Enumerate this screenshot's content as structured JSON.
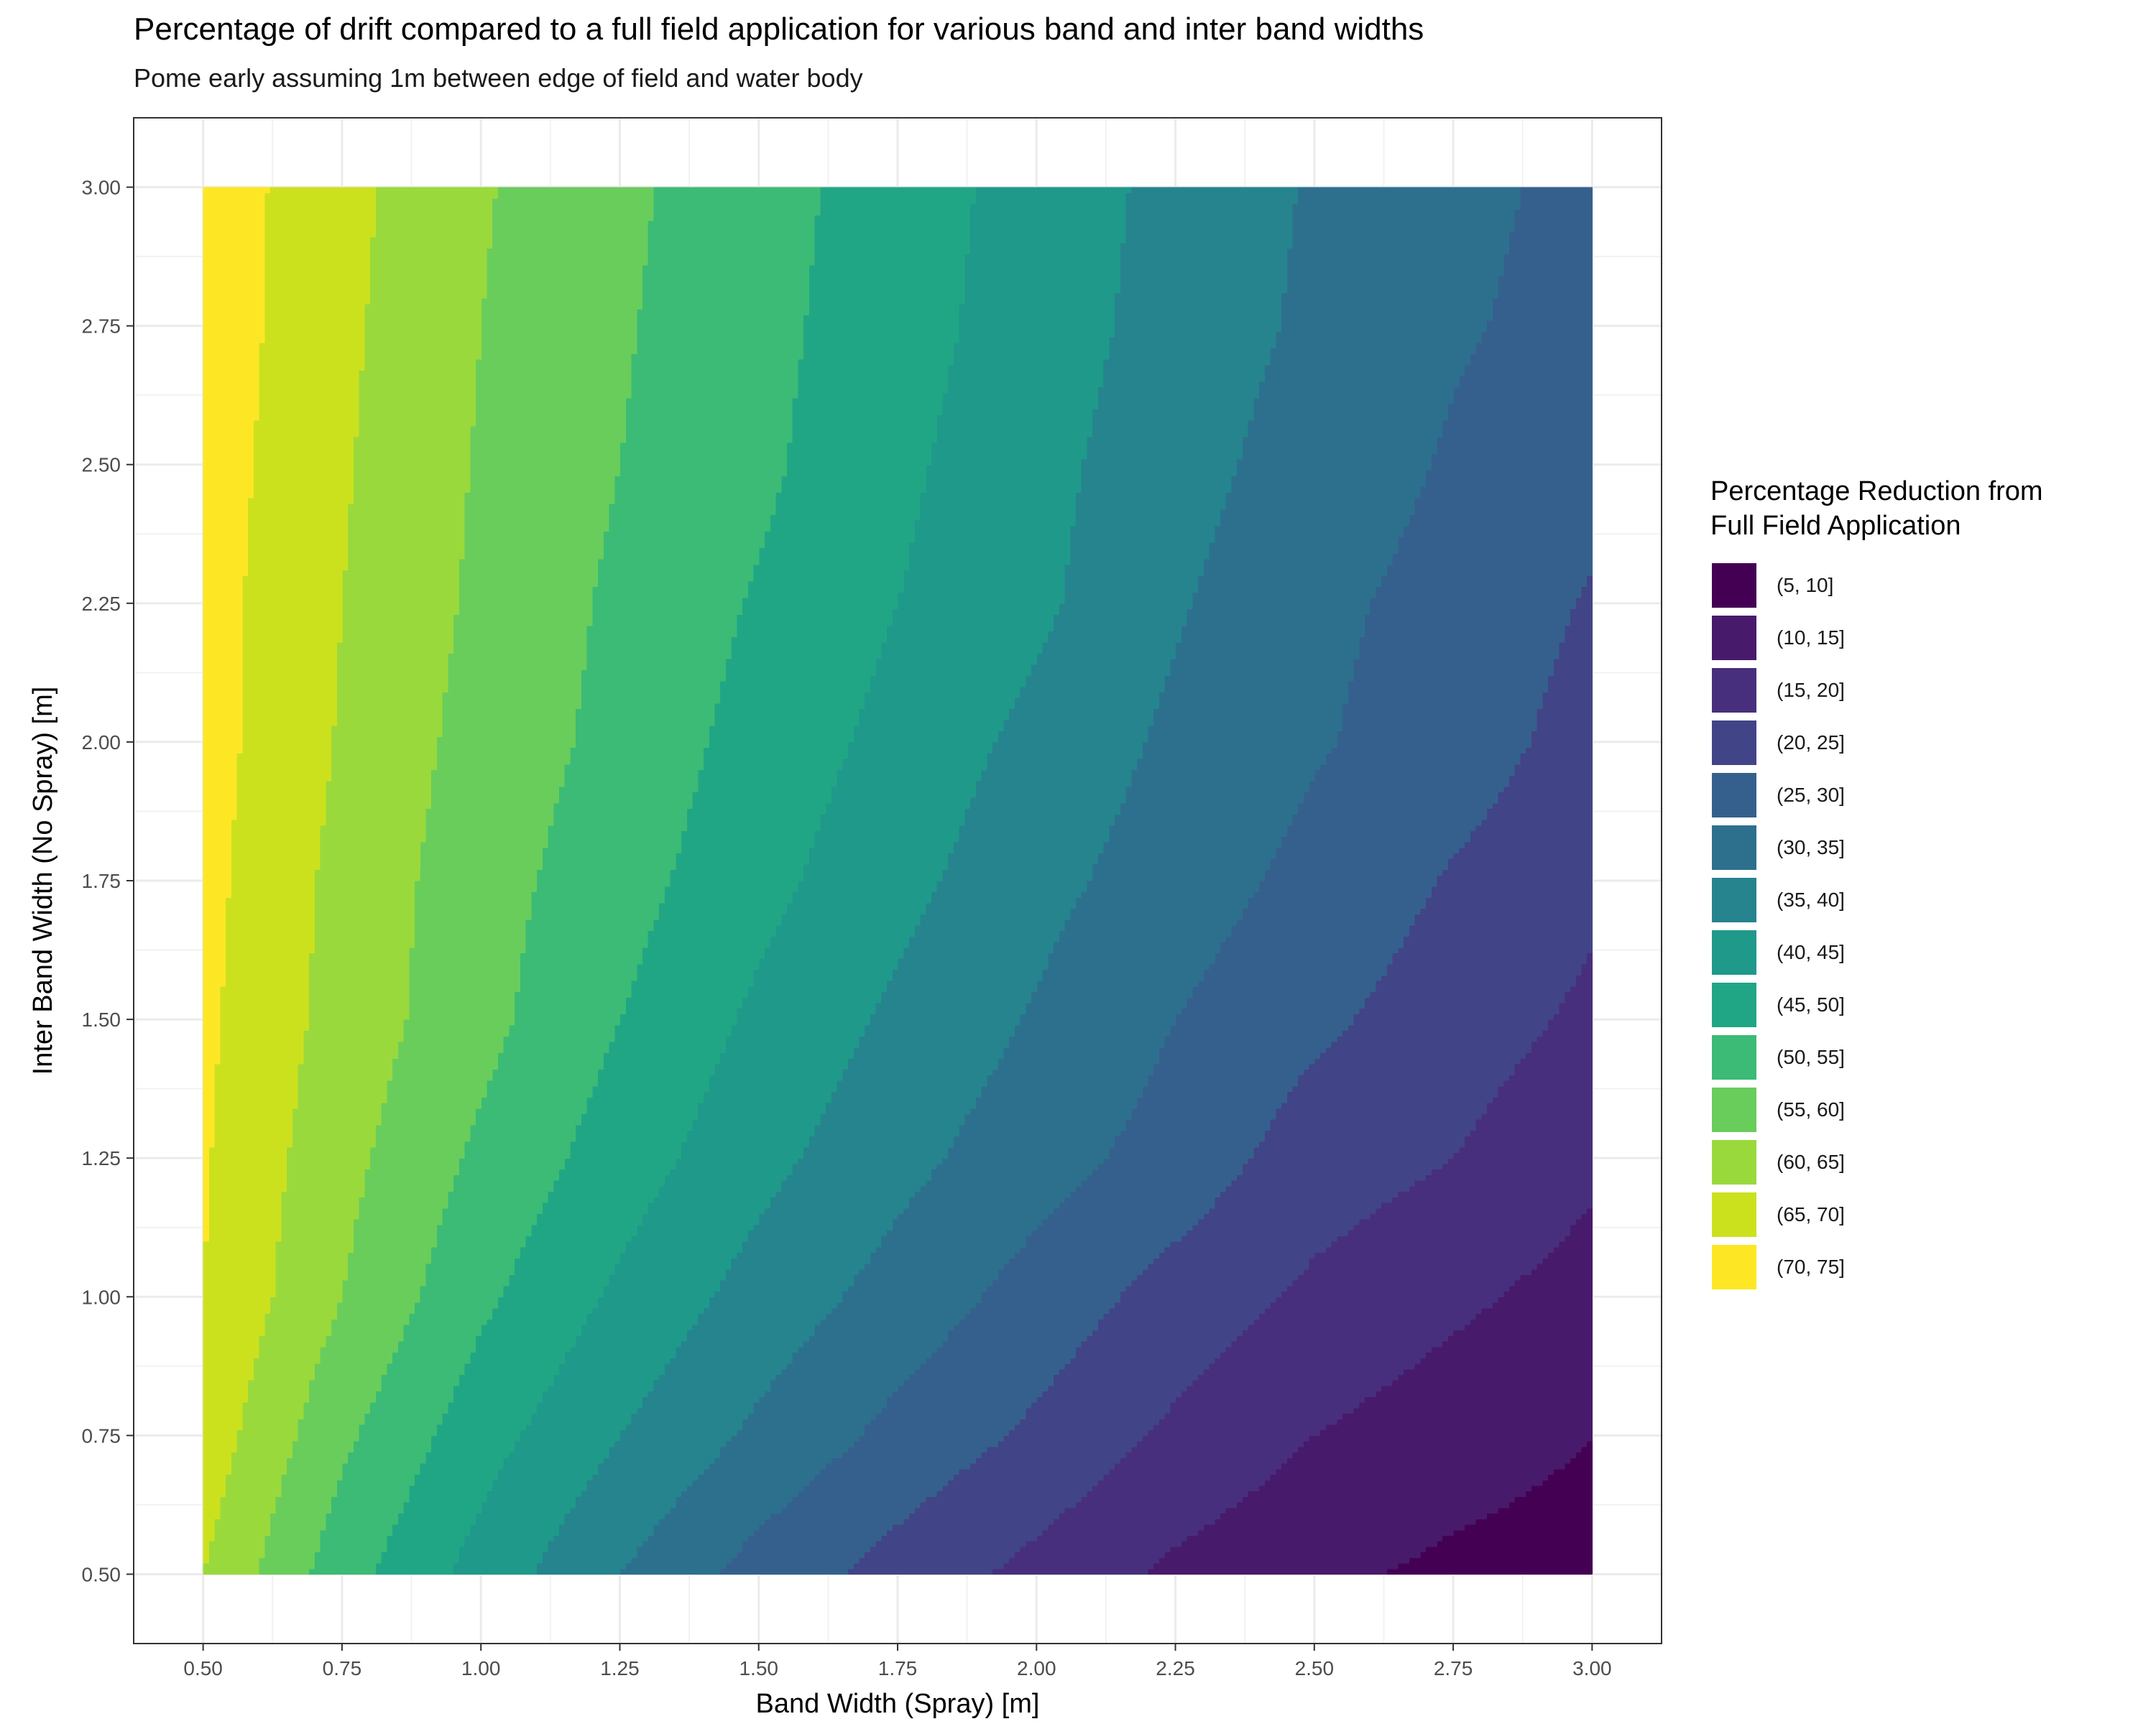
{
  "chart_data": {
    "type": "filled-contour",
    "title": "Percentage of drift compared to a full field application for various band and inter band widths",
    "subtitle": "Pome early assuming 1m between edge of field and water body",
    "xlabel": "Band Width (Spray) [m]",
    "ylabel": "Inter Band Width (No Spray) [m]",
    "xlim": [
      0.375,
      3.125
    ],
    "ylim": [
      0.375,
      3.125
    ],
    "x_ticks": [
      "0.50",
      "0.75",
      "1.00",
      "1.25",
      "1.50",
      "1.75",
      "2.00",
      "2.25",
      "2.50",
      "2.75",
      "3.00"
    ],
    "y_ticks": [
      "0.50",
      "0.75",
      "1.00",
      "1.25",
      "1.50",
      "1.75",
      "2.00",
      "2.25",
      "2.50",
      "2.75",
      "3.00"
    ],
    "x_grid": [
      0.5,
      0.75,
      1.0,
      1.25,
      1.5,
      1.75,
      2.0,
      2.25,
      2.5,
      2.75,
      3.0
    ],
    "y_grid": [
      0.5,
      0.75,
      1.0,
      1.25,
      1.5,
      1.75,
      2.0,
      2.25,
      2.5,
      2.75,
      3.0
    ],
    "z_values": [
      [
        65,
        52,
        43,
        35,
        28,
        23,
        18.5,
        14,
        11,
        9,
        8
      ],
      [
        68,
        56,
        47,
        40,
        34,
        28.5,
        24,
        19,
        15,
        12.3,
        10
      ],
      [
        70,
        60,
        51,
        44,
        38,
        33,
        28,
        23,
        19,
        16,
        13
      ],
      [
        70.5,
        61.5,
        54,
        47.5,
        41.5,
        36.5,
        32,
        28,
        22.5,
        20,
        16
      ],
      [
        71,
        63,
        56.5,
        50,
        44,
        39,
        34.5,
        30,
        26,
        22.5,
        19
      ],
      [
        71.5,
        63.5,
        57,
        52,
        46.5,
        41.5,
        36.5,
        32.5,
        28.5,
        24.5,
        21
      ],
      [
        72,
        64.5,
        58,
        53.5,
        48,
        43.5,
        38.5,
        34,
        30.5,
        27.5,
        23
      ],
      [
        72,
        65,
        59,
        54,
        49.5,
        45,
        41,
        35.5,
        31,
        28.5,
        24.5
      ],
      [
        72.5,
        65.5,
        59.5,
        55,
        51,
        46,
        41.5,
        37,
        32.5,
        29.5,
        26.5
      ],
      [
        73,
        66,
        60,
        55.5,
        51.5,
        47,
        42.5,
        38,
        34,
        30.5,
        28.5
      ],
      [
        73,
        66.5,
        60.5,
        56,
        52,
        47.5,
        43,
        38.5,
        34.5,
        31,
        29
      ]
    ],
    "legend_title": [
      "Percentage Reduction from",
      "Full Field Application"
    ],
    "legend_placement": "right",
    "grid": true,
    "bins": [
      {
        "label": "(5, 10]",
        "lo": 5,
        "hi": 10,
        "color": "#440154"
      },
      {
        "label": "(10, 15]",
        "lo": 10,
        "hi": 15,
        "color": "#481A6C"
      },
      {
        "label": "(15, 20]",
        "lo": 15,
        "hi": 20,
        "color": "#472F7D"
      },
      {
        "label": "(20, 25]",
        "lo": 20,
        "hi": 25,
        "color": "#414487"
      },
      {
        "label": "(25, 30]",
        "lo": 25,
        "hi": 30,
        "color": "#35608D"
      },
      {
        "label": "(30, 35]",
        "lo": 30,
        "hi": 35,
        "color": "#2D708E"
      },
      {
        "label": "(35, 40]",
        "lo": 35,
        "hi": 40,
        "color": "#25848E"
      },
      {
        "label": "(40, 45]",
        "lo": 40,
        "hi": 45,
        "color": "#1F998A"
      },
      {
        "label": "(45, 50]",
        "lo": 45,
        "hi": 50,
        "color": "#21A685"
      },
      {
        "label": "(50, 55]",
        "lo": 50,
        "hi": 55,
        "color": "#3BBB75"
      },
      {
        "label": "(55, 60]",
        "lo": 55,
        "hi": 60,
        "color": "#69CD5B"
      },
      {
        "label": "(60, 65]",
        "lo": 60,
        "hi": 65,
        "color": "#9AD93C"
      },
      {
        "label": "(65, 70]",
        "lo": 65,
        "hi": 70,
        "color": "#CCE11E"
      },
      {
        "label": "(70, 75]",
        "lo": 70,
        "hi": 75,
        "color": "#FDE725"
      }
    ]
  }
}
